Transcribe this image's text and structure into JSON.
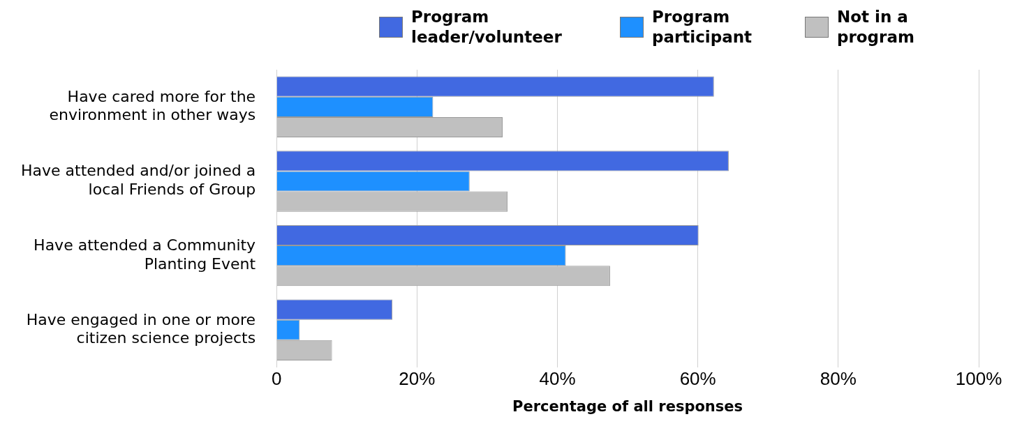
{
  "chart_data": {
    "type": "bar",
    "orientation": "horizontal",
    "xlabel": "Percentage of all responses",
    "categories": [
      "Have cared more for the environment in other ways",
      "Have attended and/or joined a local Friends of Group",
      "Have attended a Community Planting Event",
      "Have engaged in one or more citizen science projects"
    ],
    "series": [
      {
        "name": "Program leader/volunteer",
        "color": "#4169e1",
        "values": [
          62.3,
          64.4,
          60.1,
          16.5
        ]
      },
      {
        "name": "Program participant",
        "color": "#1e90ff",
        "values": [
          22.3,
          27.5,
          41.2,
          3.3
        ]
      },
      {
        "name": "Not in a program",
        "color": "#c0c0c0",
        "values": [
          32.2,
          32.9,
          47.5,
          7.9
        ]
      }
    ],
    "xlim": [
      0,
      100
    ],
    "xticks": [
      0,
      {
        "value": 20,
        "label": "20%"
      },
      {
        "value": 40,
        "label": "40%"
      },
      {
        "value": 60,
        "label": "60%"
      },
      {
        "value": 80,
        "label": "80%"
      },
      {
        "value": 100,
        "label": "100%"
      }
    ],
    "grid": "x",
    "legend": "top"
  }
}
